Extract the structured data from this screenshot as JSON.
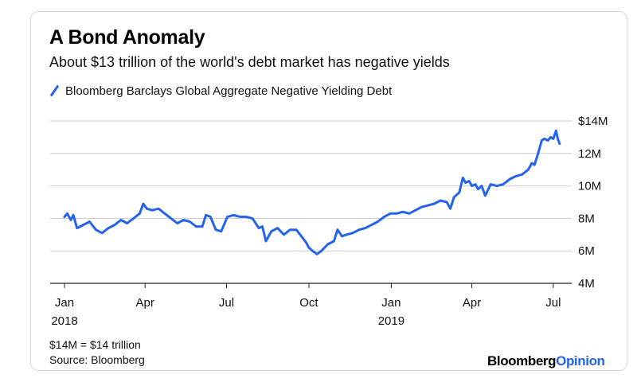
{
  "header": {
    "title": "A Bond Anomaly",
    "subtitle": "About $13 trillion of the world's debt market has negative yields"
  },
  "footer": {
    "note": "$14M = $14 trillion",
    "source": "Source: Bloomberg",
    "logo_main": "Bloomberg",
    "logo_accent": "Opinion"
  },
  "colors": {
    "series": "#2563eb",
    "grid": "#cccccc",
    "axis": "#222222"
  },
  "chart_data": {
    "type": "line",
    "title": "A Bond Anomaly",
    "subtitle": "About $13 trillion of the world's debt market has negative yields",
    "xlabel": "",
    "ylabel": "",
    "legend_position": "top-left",
    "grid": true,
    "y_axis_side": "right",
    "ylim": [
      4,
      14
    ],
    "yticks": [
      {
        "value": 4,
        "label": "4M"
      },
      {
        "value": 6,
        "label": "6M"
      },
      {
        "value": 8,
        "label": "8M"
      },
      {
        "value": 10,
        "label": "10M"
      },
      {
        "value": 12,
        "label": "12M"
      },
      {
        "value": 14,
        "label": "$14M"
      }
    ],
    "xlim": [
      "2018-01-01",
      "2019-07-10"
    ],
    "xticks": [
      {
        "date": "2018-01-01",
        "label": "Jan",
        "sublabel": "2018"
      },
      {
        "date": "2018-04-01",
        "label": "Apr",
        "sublabel": ""
      },
      {
        "date": "2018-07-01",
        "label": "Jul",
        "sublabel": ""
      },
      {
        "date": "2018-10-01",
        "label": "Oct",
        "sublabel": ""
      },
      {
        "date": "2019-01-01",
        "label": "Jan",
        "sublabel": "2019"
      },
      {
        "date": "2019-04-01",
        "label": "Apr",
        "sublabel": ""
      },
      {
        "date": "2019-07-01",
        "label": "Jul",
        "sublabel": ""
      }
    ],
    "series": [
      {
        "name": "Bloomberg Barclays Global Aggregate Negative Yielding Debt",
        "color": "#2563eb",
        "points": [
          [
            "2018-01-01",
            8.1
          ],
          [
            "2018-01-04",
            8.3
          ],
          [
            "2018-01-08",
            7.9
          ],
          [
            "2018-01-11",
            8.2
          ],
          [
            "2018-01-15",
            7.4
          ],
          [
            "2018-01-22",
            7.6
          ],
          [
            "2018-01-29",
            7.8
          ],
          [
            "2018-02-05",
            7.3
          ],
          [
            "2018-02-12",
            7.1
          ],
          [
            "2018-02-19",
            7.4
          ],
          [
            "2018-02-26",
            7.6
          ],
          [
            "2018-03-05",
            7.9
          ],
          [
            "2018-03-12",
            7.7
          ],
          [
            "2018-03-19",
            8.0
          ],
          [
            "2018-03-26",
            8.3
          ],
          [
            "2018-03-30",
            8.9
          ],
          [
            "2018-04-03",
            8.6
          ],
          [
            "2018-04-09",
            8.5
          ],
          [
            "2018-04-16",
            8.6
          ],
          [
            "2018-04-23",
            8.3
          ],
          [
            "2018-04-30",
            8.0
          ],
          [
            "2018-05-07",
            7.7
          ],
          [
            "2018-05-14",
            7.9
          ],
          [
            "2018-05-21",
            7.8
          ],
          [
            "2018-05-28",
            7.5
          ],
          [
            "2018-06-04",
            7.5
          ],
          [
            "2018-06-08",
            8.2
          ],
          [
            "2018-06-13",
            8.1
          ],
          [
            "2018-06-19",
            7.3
          ],
          [
            "2018-06-25",
            7.2
          ],
          [
            "2018-07-02",
            8.1
          ],
          [
            "2018-07-09",
            8.2
          ],
          [
            "2018-07-16",
            8.1
          ],
          [
            "2018-07-23",
            8.1
          ],
          [
            "2018-07-30",
            8.0
          ],
          [
            "2018-08-06",
            7.4
          ],
          [
            "2018-08-10",
            7.5
          ],
          [
            "2018-08-14",
            6.6
          ],
          [
            "2018-08-20",
            7.2
          ],
          [
            "2018-08-27",
            7.4
          ],
          [
            "2018-09-03",
            7.0
          ],
          [
            "2018-09-10",
            7.3
          ],
          [
            "2018-09-17",
            7.3
          ],
          [
            "2018-09-24",
            6.8
          ],
          [
            "2018-09-28",
            6.5
          ],
          [
            "2018-10-01",
            6.2
          ],
          [
            "2018-10-05",
            6.0
          ],
          [
            "2018-10-10",
            5.8
          ],
          [
            "2018-10-15",
            6.0
          ],
          [
            "2018-10-22",
            6.4
          ],
          [
            "2018-10-29",
            6.6
          ],
          [
            "2018-11-02",
            7.3
          ],
          [
            "2018-11-07",
            6.9
          ],
          [
            "2018-11-12",
            7.0
          ],
          [
            "2018-11-19",
            7.1
          ],
          [
            "2018-11-26",
            7.3
          ],
          [
            "2018-12-03",
            7.4
          ],
          [
            "2018-12-10",
            7.6
          ],
          [
            "2018-12-17",
            7.8
          ],
          [
            "2018-12-24",
            8.1
          ],
          [
            "2018-12-31",
            8.3
          ],
          [
            "2019-01-07",
            8.3
          ],
          [
            "2019-01-14",
            8.4
          ],
          [
            "2019-01-21",
            8.3
          ],
          [
            "2019-01-28",
            8.5
          ],
          [
            "2019-02-04",
            8.7
          ],
          [
            "2019-02-11",
            8.8
          ],
          [
            "2019-02-18",
            8.9
          ],
          [
            "2019-02-25",
            9.1
          ],
          [
            "2019-03-04",
            9.0
          ],
          [
            "2019-03-08",
            8.6
          ],
          [
            "2019-03-12",
            9.3
          ],
          [
            "2019-03-18",
            9.6
          ],
          [
            "2019-03-22",
            10.5
          ],
          [
            "2019-03-25",
            10.2
          ],
          [
            "2019-03-29",
            10.3
          ],
          [
            "2019-04-01",
            10.0
          ],
          [
            "2019-04-05",
            10.1
          ],
          [
            "2019-04-08",
            9.8
          ],
          [
            "2019-04-12",
            10.0
          ],
          [
            "2019-04-16",
            9.4
          ],
          [
            "2019-04-22",
            10.1
          ],
          [
            "2019-04-29",
            10.0
          ],
          [
            "2019-05-06",
            10.1
          ],
          [
            "2019-05-13",
            10.4
          ],
          [
            "2019-05-20",
            10.6
          ],
          [
            "2019-05-27",
            10.7
          ],
          [
            "2019-06-03",
            11.0
          ],
          [
            "2019-06-07",
            11.4
          ],
          [
            "2019-06-10",
            11.3
          ],
          [
            "2019-06-14",
            12.0
          ],
          [
            "2019-06-18",
            12.8
          ],
          [
            "2019-06-21",
            12.9
          ],
          [
            "2019-06-25",
            12.8
          ],
          [
            "2019-06-28",
            13.0
          ],
          [
            "2019-07-01",
            12.9
          ],
          [
            "2019-07-04",
            13.4
          ],
          [
            "2019-07-06",
            12.9
          ],
          [
            "2019-07-08",
            12.6
          ]
        ]
      }
    ]
  }
}
